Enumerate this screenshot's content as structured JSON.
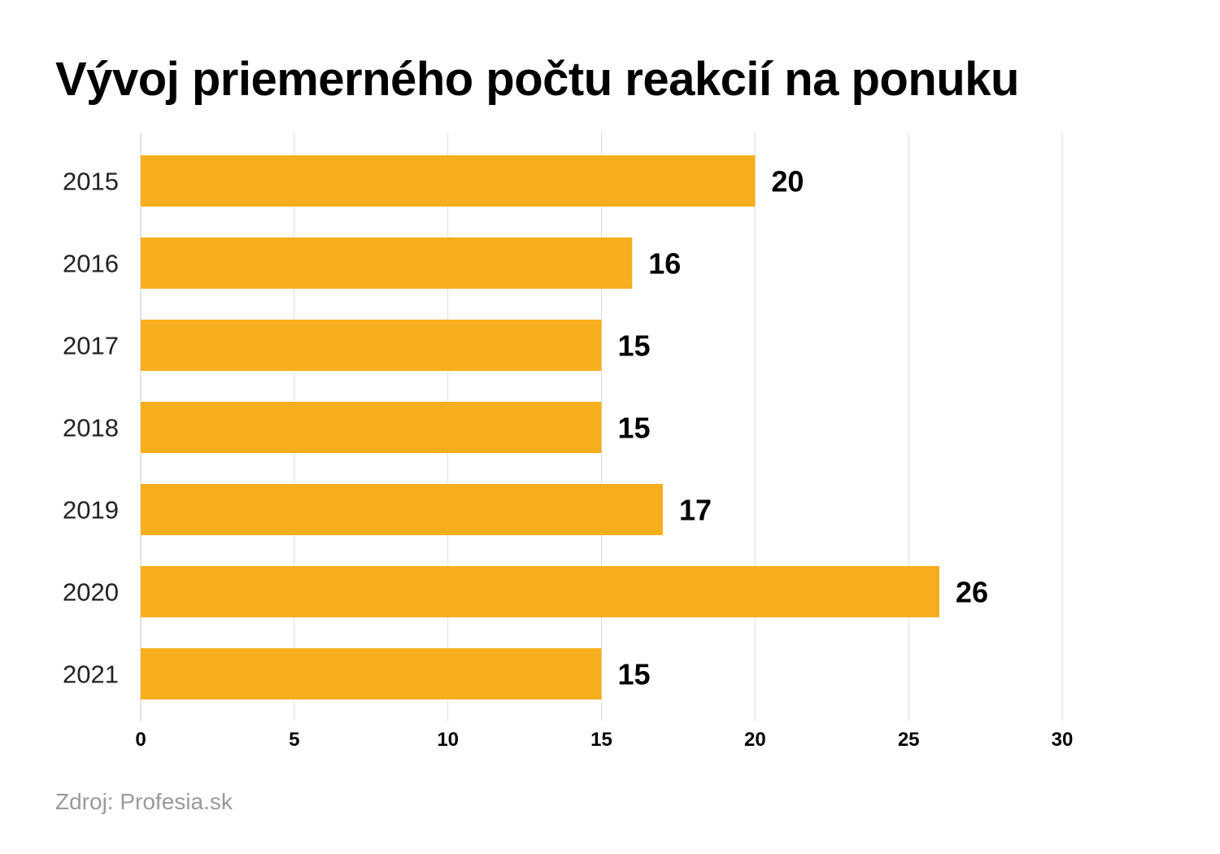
{
  "title": "Vývoj priemerného počtu reakcií na ponuku",
  "source": "Zdroj: Profesia.sk",
  "chart_data": {
    "type": "bar",
    "orientation": "horizontal",
    "title": "Vývoj priemerného počtu reakcií na ponuku",
    "categories": [
      "2015",
      "2016",
      "2017",
      "2018",
      "2019",
      "2020",
      "2021"
    ],
    "values": [
      20,
      16,
      15,
      15,
      17,
      26,
      15
    ],
    "xlim": [
      0,
      30
    ],
    "xticks": [
      0,
      5,
      10,
      15,
      20,
      25,
      30
    ],
    "bar_color": "#F7AE1C",
    "grid": true,
    "data_labels": true,
    "legend": "none"
  }
}
